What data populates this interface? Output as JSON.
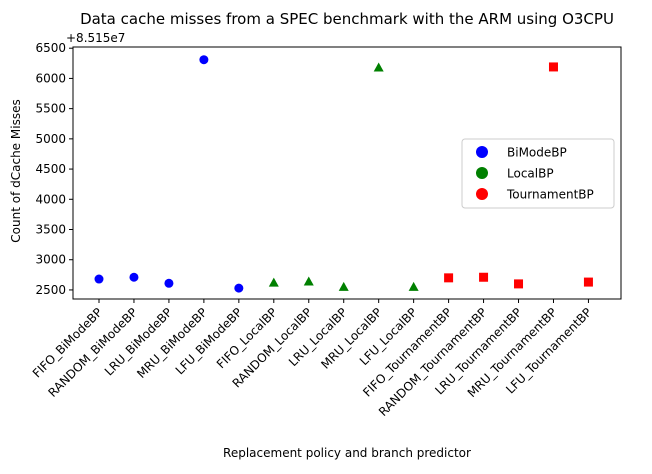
{
  "chart_data": {
    "type": "scatter",
    "title": "Data cache misses from a SPEC benchmark with the ARM using O3CPU",
    "xlabel": "Replacement policy and branch predictor",
    "ylabel": "Count of dCache Misses",
    "offset_text": "+8.515e7",
    "categories": [
      "FIFO_BiModeBP",
      "RANDOM_BiModeBP",
      "LRU_BiModeBP",
      "MRU_BiModeBP",
      "LFU_BiModeBP",
      "FIFO_LocalBP",
      "RANDOM_LocalBP",
      "LRU_LocalBP",
      "MRU_LocalBP",
      "LFU_LocalBP",
      "FIFO_TournamentBP",
      "RANDOM_TournamentBP",
      "LRU_TournamentBP",
      "MRU_TournamentBP",
      "LFU_TournamentBP"
    ],
    "y_offset": 85150000,
    "ylim": [
      2350,
      6520
    ],
    "yticks": [
      2500,
      3000,
      3500,
      4000,
      4500,
      5000,
      5500,
      6000,
      6500
    ],
    "grid": false,
    "legend_position": "center-right",
    "series": [
      {
        "name": "BiModeBP",
        "color": "#0000ff",
        "marker": "circle",
        "points": [
          {
            "category": "FIFO_BiModeBP",
            "value": 2680
          },
          {
            "category": "RANDOM_BiModeBP",
            "value": 2710
          },
          {
            "category": "LRU_BiModeBP",
            "value": 2610
          },
          {
            "category": "MRU_BiModeBP",
            "value": 6310
          },
          {
            "category": "LFU_BiModeBP",
            "value": 2530
          }
        ]
      },
      {
        "name": "LocalBP",
        "color": "#008000",
        "marker": "triangle",
        "points": [
          {
            "category": "FIFO_LocalBP",
            "value": 2620
          },
          {
            "category": "RANDOM_LocalBP",
            "value": 2640
          },
          {
            "category": "LRU_LocalBP",
            "value": 2550
          },
          {
            "category": "MRU_LocalBP",
            "value": 6180
          },
          {
            "category": "LFU_LocalBP",
            "value": 2550
          }
        ]
      },
      {
        "name": "TournamentBP",
        "color": "#ff0000",
        "marker": "square",
        "points": [
          {
            "category": "FIFO_TournamentBP",
            "value": 2700
          },
          {
            "category": "RANDOM_TournamentBP",
            "value": 2710
          },
          {
            "category": "LRU_TournamentBP",
            "value": 2600
          },
          {
            "category": "MRU_TournamentBP",
            "value": 6190
          },
          {
            "category": "LFU_TournamentBP",
            "value": 2630
          }
        ]
      }
    ]
  }
}
